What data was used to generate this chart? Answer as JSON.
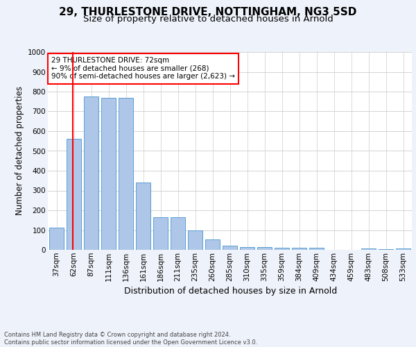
{
  "title1": "29, THURLESTONE DRIVE, NOTTINGHAM, NG3 5SD",
  "title2": "Size of property relative to detached houses in Arnold",
  "xlabel": "Distribution of detached houses by size in Arnold",
  "ylabel": "Number of detached properties",
  "categories": [
    "37sqm",
    "62sqm",
    "87sqm",
    "111sqm",
    "136sqm",
    "161sqm",
    "186sqm",
    "211sqm",
    "235sqm",
    "260sqm",
    "285sqm",
    "310sqm",
    "335sqm",
    "359sqm",
    "384sqm",
    "409sqm",
    "434sqm",
    "459sqm",
    "483sqm",
    "508sqm",
    "533sqm"
  ],
  "values": [
    113,
    560,
    775,
    770,
    770,
    342,
    165,
    165,
    97,
    53,
    20,
    15,
    15,
    10,
    10,
    10,
    0,
    0,
    8,
    3,
    8
  ],
  "bar_color": "#aec6e8",
  "bar_edge_color": "#5a9fd4",
  "vline_x_index": 1,
  "annotation_text": "29 THURLESTONE DRIVE: 72sqm\n← 9% of detached houses are smaller (268)\n90% of semi-detached houses are larger (2,623) →",
  "annotation_box_color": "white",
  "annotation_box_edge_color": "red",
  "footer_text": "Contains HM Land Registry data © Crown copyright and database right 2024.\nContains public sector information licensed under the Open Government Licence v3.0.",
  "ylim": [
    0,
    1000
  ],
  "yticks": [
    0,
    100,
    200,
    300,
    400,
    500,
    600,
    700,
    800,
    900,
    1000
  ],
  "bg_color": "#eef2fa",
  "plot_bg_color": "#ffffff",
  "grid_color": "#cccccc",
  "title1_fontsize": 11,
  "title2_fontsize": 9.5,
  "xlabel_fontsize": 9,
  "ylabel_fontsize": 8.5,
  "tick_fontsize": 7.5,
  "footer_fontsize": 6.0,
  "annotation_fontsize": 7.5
}
